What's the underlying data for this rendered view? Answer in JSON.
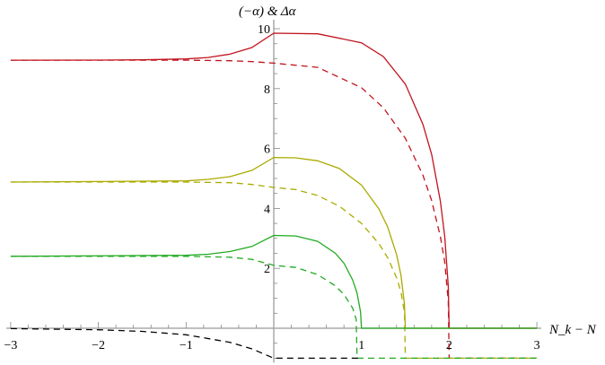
{
  "chart_data": {
    "type": "line",
    "title": "",
    "xlabel": "N_k − N",
    "ylabel": "(−α) & Δα",
    "xlim": [
      -3.05,
      3.05
    ],
    "ylim": [
      -1.15,
      10.3
    ],
    "x_ticks": [
      -3,
      -2,
      -1,
      1,
      2,
      3
    ],
    "y_ticks": [
      2,
      4,
      6,
      8,
      10
    ],
    "grid": false,
    "series": [
      {
        "color": "#c0141e",
        "style": "solid",
        "points": [
          [
            -3,
            8.95
          ],
          [
            -2,
            8.952
          ],
          [
            -1.5,
            8.96
          ],
          [
            -1,
            8.99
          ],
          [
            -0.75,
            9.04
          ],
          [
            -0.5,
            9.15
          ],
          [
            -0.25,
            9.37
          ],
          [
            0,
            9.85
          ],
          [
            0.5,
            9.83
          ],
          [
            1,
            9.53
          ],
          [
            1.25,
            9.07
          ],
          [
            1.5,
            8.15
          ],
          [
            1.7,
            6.81
          ],
          [
            1.8,
            5.8
          ],
          [
            1.9,
            4.24
          ],
          [
            1.95,
            3.05
          ],
          [
            1.99,
            1.4
          ],
          [
            2,
            0
          ],
          [
            3,
            0
          ]
        ]
      },
      {
        "color": "#c0141e",
        "style": "dashed",
        "points": [
          [
            -3,
            8.95
          ],
          [
            -1,
            8.95
          ],
          [
            -0.5,
            8.93
          ],
          [
            -0.25,
            8.9
          ],
          [
            0,
            8.85
          ],
          [
            0.5,
            8.71
          ],
          [
            1,
            8.03
          ],
          [
            1.25,
            7.36
          ],
          [
            1.5,
            6.34
          ],
          [
            1.7,
            5.11
          ],
          [
            1.8,
            4.26
          ],
          [
            1.9,
            3.06
          ],
          [
            1.95,
            2.2
          ],
          [
            1.99,
            0.9
          ],
          [
            2,
            -1
          ],
          [
            3,
            -1
          ]
        ]
      },
      {
        "color": "#aaaa00",
        "style": "solid",
        "points": [
          [
            -3,
            4.88
          ],
          [
            -1,
            4.92
          ],
          [
            -0.75,
            4.97
          ],
          [
            -0.5,
            5.06
          ],
          [
            -0.25,
            5.27
          ],
          [
            0,
            5.7
          ],
          [
            0.25,
            5.69
          ],
          [
            0.5,
            5.59
          ],
          [
            0.75,
            5.33
          ],
          [
            1,
            4.78
          ],
          [
            1.2,
            3.98
          ],
          [
            1.3,
            3.37
          ],
          [
            1.4,
            2.46
          ],
          [
            1.45,
            1.77
          ],
          [
            1.49,
            0.8
          ],
          [
            1.5,
            0
          ],
          [
            3,
            0
          ]
        ]
      },
      {
        "color": "#aaaa00",
        "style": "dashed",
        "points": [
          [
            -3,
            4.88
          ],
          [
            -1,
            4.88
          ],
          [
            -0.5,
            4.86
          ],
          [
            -0.25,
            4.8
          ],
          [
            0,
            4.7
          ],
          [
            0.25,
            4.63
          ],
          [
            0.5,
            4.43
          ],
          [
            0.75,
            4.07
          ],
          [
            1,
            3.5
          ],
          [
            1.2,
            2.82
          ],
          [
            1.3,
            2.35
          ],
          [
            1.4,
            1.69
          ],
          [
            1.45,
            1.21
          ],
          [
            1.49,
            0.54
          ],
          [
            1.5,
            -1
          ],
          [
            3,
            -1
          ]
        ]
      },
      {
        "color": "#22aa22",
        "style": "solid",
        "points": [
          [
            -3,
            2.4
          ],
          [
            -1,
            2.435
          ],
          [
            -0.75,
            2.47
          ],
          [
            -0.5,
            2.56
          ],
          [
            -0.25,
            2.73
          ],
          [
            0,
            3.1
          ],
          [
            0.25,
            3.08
          ],
          [
            0.5,
            2.9
          ],
          [
            0.7,
            2.51
          ],
          [
            0.8,
            2.17
          ],
          [
            0.9,
            1.61
          ],
          [
            0.95,
            1.17
          ],
          [
            0.99,
            0.54
          ],
          [
            1,
            0
          ],
          [
            3,
            0
          ]
        ]
      },
      {
        "color": "#22aa22",
        "style": "dashed",
        "points": [
          [
            -3,
            2.4
          ],
          [
            -1,
            2.4
          ],
          [
            -0.5,
            2.37
          ],
          [
            -0.25,
            2.3
          ],
          [
            0,
            2.1
          ],
          [
            0.25,
            2.03
          ],
          [
            0.5,
            1.79
          ],
          [
            0.7,
            1.42
          ],
          [
            0.8,
            1.13
          ],
          [
            0.9,
            0.67
          ],
          [
            0.94,
            0.3
          ],
          [
            0.95,
            -1
          ],
          [
            3,
            -1
          ]
        ]
      },
      {
        "color": "#000000",
        "style": "dashed",
        "points": [
          [
            -3,
            -0.011
          ],
          [
            -2,
            -0.05
          ],
          [
            -1.5,
            -0.105
          ],
          [
            -1,
            -0.22
          ],
          [
            -0.5,
            -0.47
          ],
          [
            -0.25,
            -0.69
          ],
          [
            0,
            -1
          ],
          [
            1,
            -1
          ]
        ]
      }
    ]
  }
}
